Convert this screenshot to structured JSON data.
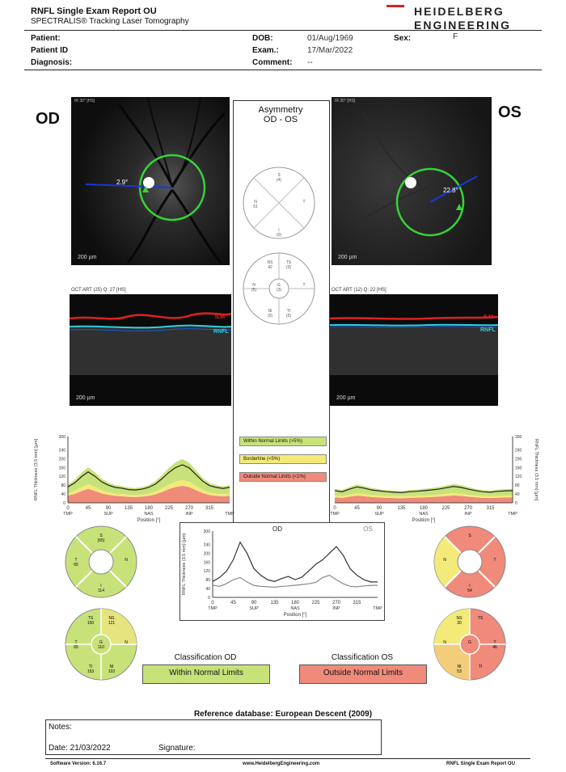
{
  "report": {
    "title": "RNFL Single Exam Report OU",
    "subtitle": "SPECTRALIS® Tracking Laser Tomography",
    "brand_line1": "HEIDELBERG",
    "brand_line2": "ENGINEERING"
  },
  "patient": {
    "patient_label": "Patient:",
    "patient_id_label": "Patient ID",
    "diagnosis_label": "Diagnosis:",
    "dob_label": "DOB:",
    "dob_value": "01/Aug/1969",
    "exam_label": "Exam.:",
    "exam_value": "17/Mar/2022",
    "comment_label": "Comment:",
    "comment_value": "--",
    "sex_label": "Sex:",
    "sex_value": "F"
  },
  "od": {
    "eye_label": "OD",
    "fundus_caption": "IR 30° [HS]",
    "angle": "2.9°",
    "scale": "200 µm",
    "oct_caption": "OCT ART (25) Q: 27 [HS]",
    "oct_scale": "200 µm",
    "ilm": "ILM",
    "rnfl": "RNFL",
    "sectors_outer": {
      "T": "65",
      "S": "",
      "N": "",
      "I": "114"
    },
    "sectors_ts": {
      "label": "TS",
      "value": "150"
    },
    "sectors_ns": {
      "label": "NS",
      "value": "121"
    },
    "sectors_t": {
      "label": "T",
      "value": "65"
    },
    "sectors_g": {
      "label": "G",
      "value": "110"
    },
    "sectors_n": {
      "label": "N",
      "value": ""
    },
    "sectors_ti": {
      "label": "TI",
      "value": "153"
    },
    "sectors_ni": {
      "label": "NI",
      "value": "103"
    },
    "classification_label": "Classification OD",
    "classification_value": "Within Normal Limits"
  },
  "os": {
    "eye_label": "OS",
    "fundus_caption": "IR 30° [HS]",
    "angle": "22.8°",
    "scale": "200 µm",
    "oct_caption": "OCT ART (12) Q: 22 [HS]",
    "oct_scale": "200 µm",
    "ilm": "ILM",
    "rnfl": "RNFL",
    "sectors_outer": {
      "T": "",
      "S": "",
      "N": "",
      "I": "54"
    },
    "sectors_ts": {
      "label": "TS",
      "value": ""
    },
    "sectors_ns": {
      "label": "NS",
      "value": "30"
    },
    "sectors_t": {
      "label": "T",
      "value": "46"
    },
    "sectors_g": {
      "label": "G",
      "value": ""
    },
    "sectors_n": {
      "label": "N",
      "value": ""
    },
    "sectors_ti": {
      "label": "TI",
      "value": ""
    },
    "sectors_ni": {
      "label": "NI",
      "value": "53"
    },
    "classification_label": "Classification OS",
    "classification_value": "Outside Normal Limits"
  },
  "asymmetry": {
    "title_line1": "Asymmetry",
    "title_line2": "OD - OS"
  },
  "legend": {
    "within": "Within Normal Limits (>5%)",
    "borderline": "Borderline (<5%)",
    "outside": "Outside Normal Limits (<1%)"
  },
  "charts": {
    "x_ticks": [
      "0",
      "45",
      "90",
      "135",
      "180",
      "225",
      "270",
      "315"
    ],
    "x_cats": [
      "TMP",
      "SUP",
      "NAS",
      "INP",
      "TMP"
    ],
    "x_label": "Position [°]",
    "y_label_od": "RNFL Thickness (3.5 mm) [µm]",
    "y_label_os": "RNFL Thickness (3.5 mm) [µm]",
    "y_ticks": [
      "0",
      "40",
      "80",
      "120",
      "160",
      "200",
      "240",
      "300"
    ],
    "compare_od": "OD",
    "compare_os": "OS",
    "compare_ylabel": "RNFL Thickness (3.5 mm) [µm]",
    "compare_y_ticks": [
      "0",
      "40",
      "80",
      "120",
      "160",
      "200",
      "240",
      "300"
    ]
  },
  "footer": {
    "reference": "Reference database: European Descent (2009)",
    "notes_label": "Notes:",
    "date_label": "Date: 21/03/2022",
    "signature_label": "Signature:",
    "software": "Software Version: 6.16.7",
    "website": "www.HeidelbergEngineering.com",
    "report_name": "RNFL Single Exam Report OU"
  },
  "colors": {
    "green_zone": "#c8e27a",
    "yellow_zone": "#f3ea7a",
    "red_zone": "#f08a7a",
    "circle_green": "#37d437",
    "scan_blue": "#1838d8",
    "od_line": "#333333",
    "os_line": "#888888"
  },
  "chart_data": [
    {
      "type": "line",
      "title": "",
      "xlabel": "Position [°]",
      "ylabel": "RNFL Thickness (3.5 mm) [µm]",
      "x": [
        0,
        15,
        30,
        45,
        60,
        75,
        90,
        105,
        120,
        135,
        150,
        165,
        180,
        195,
        210,
        225,
        240,
        255,
        270,
        285,
        300,
        315,
        330,
        345,
        360
      ],
      "series": [
        {
          "name": "OD",
          "values": [
            72,
            90,
            118,
            140,
            120,
            95,
            80,
            70,
            66,
            60,
            58,
            62,
            70,
            85,
            110,
            138,
            160,
            172,
            158,
            128,
            98,
            78,
            70,
            65,
            70
          ]
        }
      ],
      "ylim": [
        0,
        300
      ]
    },
    {
      "type": "line",
      "title": "",
      "xlabel": "Position [°]",
      "ylabel": "RNFL Thickness (3.5 mm) [µm]",
      "x": [
        0,
        15,
        30,
        45,
        60,
        75,
        90,
        105,
        120,
        135,
        150,
        165,
        180,
        195,
        210,
        225,
        240,
        255,
        270,
        285,
        300,
        315,
        330,
        345,
        360
      ],
      "series": [
        {
          "name": "OS",
          "values": [
            55,
            50,
            62,
            72,
            66,
            58,
            54,
            50,
            48,
            46,
            50,
            52,
            55,
            58,
            62,
            68,
            74,
            70,
            62,
            55,
            50,
            48,
            52,
            54,
            55
          ]
        }
      ],
      "ylim": [
        0,
        300
      ]
    },
    {
      "type": "line",
      "title": "",
      "xlabel": "Position [°]",
      "ylabel": "RNFL Thickness (3.5 mm) [µm]",
      "x": [
        0,
        15,
        30,
        45,
        60,
        75,
        90,
        105,
        120,
        135,
        150,
        165,
        180,
        195,
        210,
        225,
        240,
        255,
        270,
        285,
        300,
        315,
        330,
        345,
        360
      ],
      "series": [
        {
          "name": "OD",
          "values": [
            72,
            90,
            118,
            170,
            250,
            200,
            130,
            100,
            80,
            72,
            85,
            95,
            80,
            92,
            120,
            150,
            170,
            200,
            230,
            190,
            130,
            100,
            80,
            70,
            70
          ]
        },
        {
          "name": "OS",
          "values": [
            55,
            50,
            62,
            80,
            90,
            70,
            54,
            50,
            48,
            46,
            50,
            52,
            55,
            58,
            62,
            68,
            90,
            100,
            80,
            62,
            50,
            48,
            52,
            54,
            55
          ]
        }
      ],
      "ylim": [
        0,
        300
      ]
    }
  ]
}
